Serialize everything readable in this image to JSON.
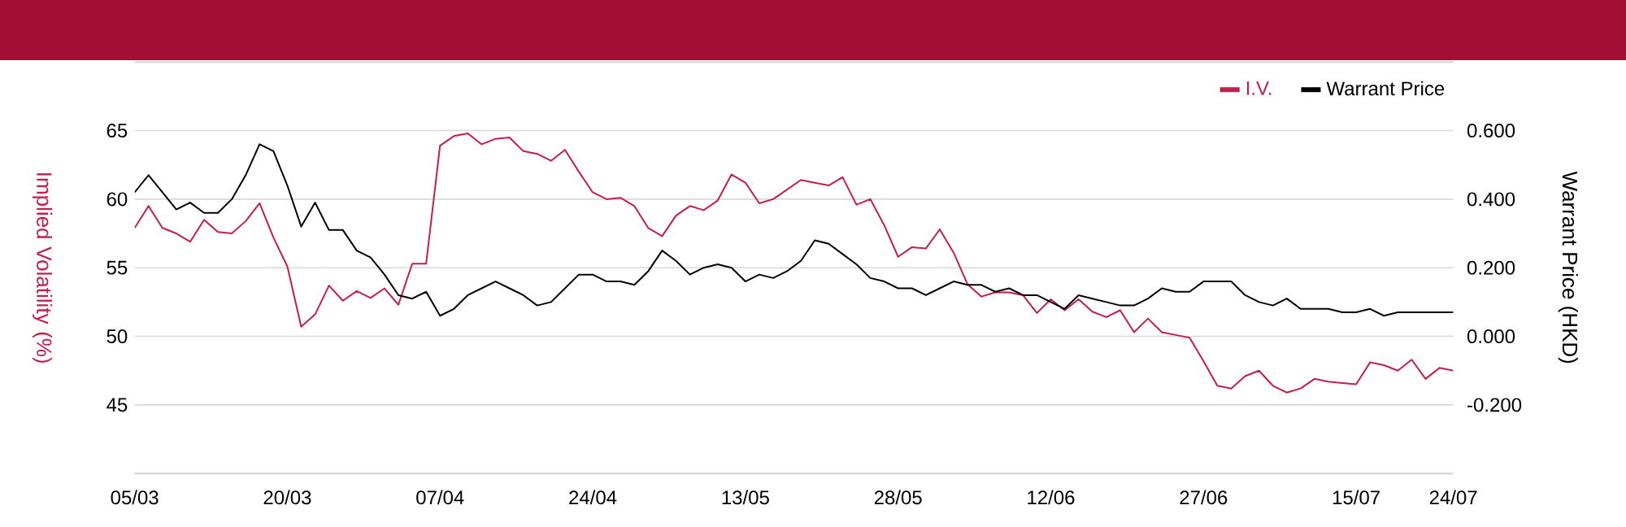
{
  "chart_data": {
    "type": "line",
    "ylabel": "Implied Volatility (%)",
    "y2label": "Warrant Price (HKD)",
    "categories": [
      "05/03",
      null,
      null,
      null,
      null,
      null,
      null,
      null,
      null,
      null,
      null,
      "20/03",
      null,
      null,
      null,
      null,
      null,
      null,
      null,
      null,
      null,
      null,
      "07/04",
      null,
      null,
      null,
      null,
      null,
      null,
      null,
      null,
      null,
      null,
      "24/04",
      null,
      null,
      null,
      null,
      null,
      null,
      null,
      null,
      null,
      null,
      "13/05",
      null,
      null,
      null,
      null,
      null,
      null,
      null,
      null,
      null,
      null,
      "28/05",
      null,
      null,
      null,
      null,
      null,
      null,
      null,
      null,
      null,
      null,
      "12/06",
      null,
      null,
      null,
      null,
      null,
      null,
      null,
      null,
      null,
      null,
      "27/06",
      null,
      null,
      null,
      null,
      null,
      null,
      null,
      null,
      null,
      null,
      "15/07",
      null,
      null,
      null,
      null,
      null,
      null,
      "24/07"
    ],
    "series": [
      {
        "name": "I.V.",
        "color": "#c41e4a",
        "values": [
          57.9,
          59.5,
          57.9,
          57.5,
          56.9,
          58.5,
          57.6,
          57.5,
          58.4,
          59.7,
          57.2,
          55.1,
          50.7,
          51.6,
          53.7,
          52.6,
          53.3,
          52.8,
          53.5,
          52.3,
          55.3,
          55.3,
          63.9,
          64.6,
          64.8,
          64.0,
          64.4,
          64.5,
          63.5,
          63.3,
          62.8,
          63.6,
          62.0,
          60.5,
          60.0,
          60.1,
          59.5,
          57.9,
          57.3,
          58.8,
          59.5,
          59.2,
          59.9,
          61.8,
          61.2,
          59.7,
          60.0,
          60.7,
          61.4,
          61.2,
          61.0,
          61.6,
          59.6,
          60.0,
          58.1,
          55.8,
          56.5,
          56.4,
          57.8,
          56.1,
          53.8,
          52.9,
          53.2,
          53.2,
          53.0,
          51.7,
          52.7,
          51.9,
          52.7,
          51.8,
          51.4,
          51.9,
          50.3,
          51.3,
          50.3,
          50.1,
          49.9,
          48.2,
          46.4,
          46.2,
          47.1,
          47.5,
          46.4,
          45.9,
          46.2,
          46.9,
          46.7,
          46.6,
          46.5,
          48.1,
          47.9,
          47.5,
          48.3,
          46.9,
          47.7,
          47.5
        ]
      },
      {
        "name": "Warrant Price",
        "color": "#000000",
        "axis": "y2",
        "values": [
          0.42,
          0.47,
          0.42,
          0.37,
          0.39,
          0.36,
          0.36,
          0.4,
          0.47,
          0.56,
          0.54,
          0.44,
          0.32,
          0.39,
          0.31,
          0.31,
          0.25,
          0.23,
          0.18,
          0.12,
          0.11,
          0.13,
          0.06,
          0.08,
          0.12,
          0.14,
          0.16,
          0.14,
          0.12,
          0.09,
          0.1,
          0.14,
          0.18,
          0.18,
          0.16,
          0.16,
          0.15,
          0.19,
          0.25,
          0.22,
          0.18,
          0.2,
          0.21,
          0.2,
          0.16,
          0.18,
          0.17,
          0.19,
          0.22,
          0.28,
          0.27,
          0.24,
          0.21,
          0.17,
          0.16,
          0.14,
          0.14,
          0.12,
          0.14,
          0.16,
          0.15,
          0.15,
          0.13,
          0.14,
          0.12,
          0.12,
          0.1,
          0.08,
          0.12,
          0.11,
          0.1,
          0.09,
          0.09,
          0.11,
          0.14,
          0.13,
          0.13,
          0.16,
          0.16,
          0.16,
          0.12,
          0.1,
          0.09,
          0.11,
          0.08,
          0.08,
          0.08,
          0.07,
          0.07,
          0.08,
          0.06,
          0.07,
          0.07,
          0.07,
          0.07,
          0.07
        ]
      }
    ],
    "ylim": [
      40,
      70
    ],
    "yticks": [
      45,
      50,
      55,
      60,
      65
    ],
    "y2lim": [
      -0.4,
      0.8
    ],
    "y2ticks": [
      {
        "value": -0.2,
        "label": "-0.200"
      },
      {
        "value": 0,
        "label": "0.000"
      },
      {
        "value": 0.2,
        "label": "0.200"
      },
      {
        "value": 0.4,
        "label": "0.400"
      },
      {
        "value": 0.6,
        "label": "0.600"
      }
    ],
    "grid": "y",
    "legend": "top right"
  }
}
